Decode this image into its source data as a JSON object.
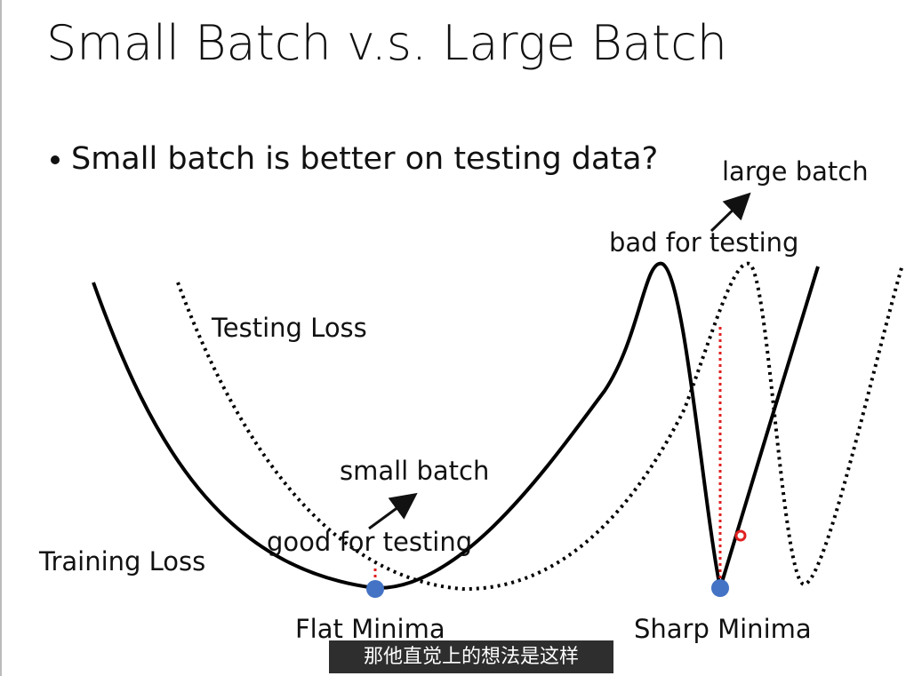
{
  "title": "Small Batch v.s. Large Batch",
  "bullet": "Small batch is better on testing data?",
  "labels": {
    "large_batch": "large batch",
    "bad_for_testing": "bad for testing",
    "testing_loss": "Testing Loss",
    "small_batch": "small batch",
    "good_for_testing": "good for testing",
    "training_loss": "Training Loss",
    "flat_minima": "Flat Minima",
    "sharp_minima": "Sharp Minima"
  },
  "subtitle": "那他直觉上的想法是这样"
}
